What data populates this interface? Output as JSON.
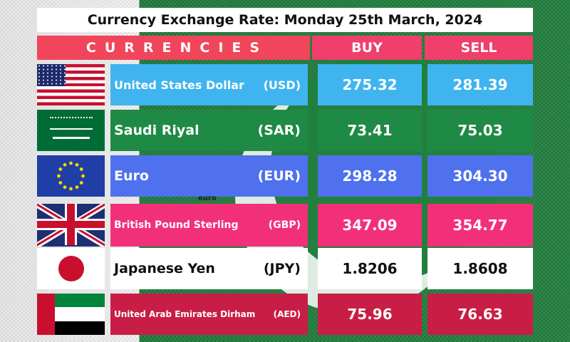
{
  "title": "Currency Exchange Rate: Monday 25th March, 2024",
  "headers": {
    "currencies": "CURRENCIES",
    "buy": "BUY",
    "sell": "SELL"
  },
  "euro_tag": "euro",
  "colors": {
    "usd": "#3fb4ee",
    "sar": "#1f8a45",
    "eur": "#4f71ee",
    "gbp": "#f2307a",
    "jpy": "#ffffff",
    "aed": "#c81e45"
  },
  "rows": [
    {
      "flag": "us-flag-icon",
      "name": "United States Dollar",
      "code": "(USD)",
      "buy": "275.32",
      "sell": "281.39"
    },
    {
      "flag": "saudi-flag-icon",
      "name": "Saudi Riyal",
      "code": "(SAR)",
      "buy": "73.41",
      "sell": "75.03"
    },
    {
      "flag": "eu-flag-icon",
      "name": "Euro",
      "code": "(EUR)",
      "buy": "298.28",
      "sell": "304.30"
    },
    {
      "flag": "uk-flag-icon",
      "name": "British Pound Sterling",
      "code": "(GBP)",
      "buy": "347.09",
      "sell": "354.77"
    },
    {
      "flag": "japan-flag-icon",
      "name": "Japanese Yen",
      "code": "(JPY)",
      "buy": "1.8206",
      "sell": "1.8608"
    },
    {
      "flag": "uae-flag-icon",
      "name": "United Arab Emirates Dirham",
      "code": "(AED)",
      "buy": "75.96",
      "sell": "76.63"
    }
  ]
}
